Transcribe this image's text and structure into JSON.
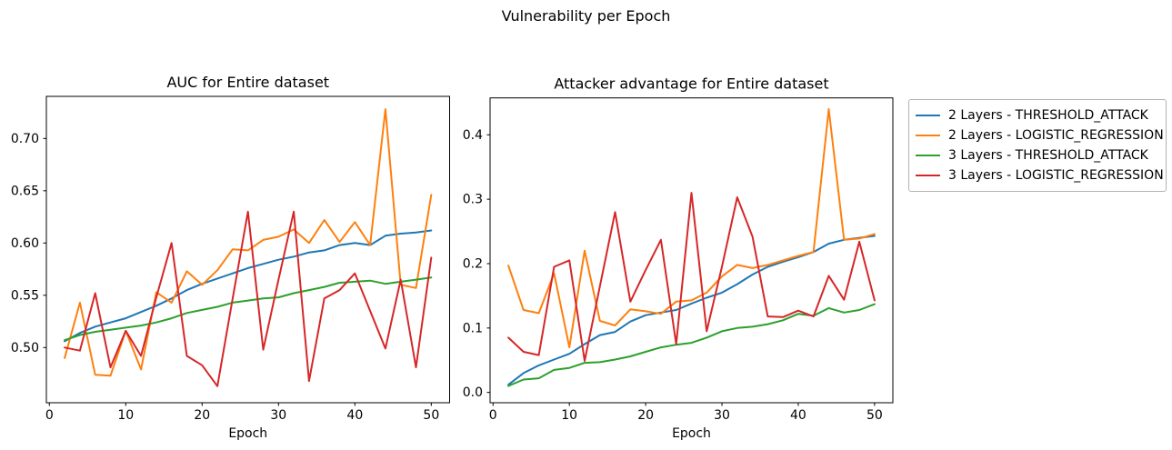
{
  "figure": {
    "suptitle": "Vulnerability per Epoch"
  },
  "legend": {
    "items": [
      {
        "label": "2 Layers - THRESHOLD_ATTACK",
        "color": "#1f77b4"
      },
      {
        "label": "2 Layers - LOGISTIC_REGRESSION",
        "color": "#ff7f0e"
      },
      {
        "label": "3 Layers - THRESHOLD_ATTACK",
        "color": "#2ca02c"
      },
      {
        "label": "3 Layers - LOGISTIC_REGRESSION",
        "color": "#d62728"
      }
    ]
  },
  "chart_data": [
    {
      "type": "line",
      "title": "AUC for Entire dataset",
      "xlabel": "Epoch",
      "legend_position": "outside-right-of-second-plot",
      "grid": false,
      "xlim": [
        -0.39,
        52.4
      ],
      "ylim": [
        0.4472,
        0.7403
      ],
      "xticks": [
        {
          "v": 0,
          "label": "0"
        },
        {
          "v": 10,
          "label": "10"
        },
        {
          "v": 20,
          "label": "20"
        },
        {
          "v": 30,
          "label": "30"
        },
        {
          "v": 40,
          "label": "40"
        },
        {
          "v": 50,
          "label": "50"
        }
      ],
      "yticks": [
        {
          "v": 0.5,
          "label": "0.50"
        },
        {
          "v": 0.55,
          "label": "0.55"
        },
        {
          "v": 0.6,
          "label": "0.60"
        },
        {
          "v": 0.65,
          "label": "0.65"
        },
        {
          "v": 0.7,
          "label": "0.70"
        }
      ],
      "x": [
        2,
        4,
        6,
        8,
        10,
        12,
        14,
        16,
        18,
        20,
        22,
        24,
        26,
        28,
        30,
        32,
        34,
        36,
        38,
        40,
        42,
        44,
        46,
        48,
        50
      ],
      "series": [
        {
          "name": "2 Layers - THRESHOLD_ATTACK",
          "color": "#1f77b4",
          "values": [
            0.506,
            0.514,
            0.52,
            0.524,
            0.528,
            0.534,
            0.54,
            0.547,
            0.555,
            0.561,
            0.566,
            0.571,
            0.576,
            0.58,
            0.584,
            0.587,
            0.591,
            0.593,
            0.598,
            0.6,
            0.598,
            0.607,
            0.609,
            0.61,
            0.612
          ]
        },
        {
          "name": "2 Layers - LOGISTIC_REGRESSION",
          "color": "#ff7f0e",
          "values": [
            0.49,
            0.543,
            0.474,
            0.473,
            0.516,
            0.479,
            0.553,
            0.543,
            0.573,
            0.56,
            0.574,
            0.594,
            0.593,
            0.603,
            0.606,
            0.613,
            0.6,
            0.622,
            0.601,
            0.62,
            0.598,
            0.728,
            0.56,
            0.557,
            0.646
          ]
        },
        {
          "name": "3 Layers - THRESHOLD_ATTACK",
          "color": "#2ca02c",
          "values": [
            0.507,
            0.512,
            0.515,
            0.517,
            0.519,
            0.521,
            0.524,
            0.528,
            0.533,
            0.536,
            0.539,
            0.543,
            0.545,
            0.547,
            0.548,
            0.552,
            0.555,
            0.558,
            0.562,
            0.563,
            0.564,
            0.561,
            0.563,
            0.565,
            0.567
          ]
        },
        {
          "name": "3 Layers - LOGISTIC_REGRESSION",
          "color": "#d62728",
          "values": [
            0.5,
            0.497,
            0.552,
            0.481,
            0.516,
            0.492,
            0.548,
            0.6,
            0.492,
            0.483,
            0.463,
            0.547,
            0.63,
            0.498,
            0.565,
            0.63,
            0.468,
            0.547,
            0.555,
            0.571,
            0.535,
            0.499,
            0.565,
            0.481,
            0.586
          ]
        }
      ]
    },
    {
      "type": "line",
      "title": "Attacker advantage for Entire dataset",
      "xlabel": "Epoch",
      "grid": false,
      "xlim": [
        -0.39,
        52.4
      ],
      "ylim": [
        -0.016,
        0.4573
      ],
      "xticks": [
        {
          "v": 0,
          "label": "0"
        },
        {
          "v": 10,
          "label": "10"
        },
        {
          "v": 20,
          "label": "20"
        },
        {
          "v": 30,
          "label": "30"
        },
        {
          "v": 40,
          "label": "40"
        },
        {
          "v": 50,
          "label": "50"
        }
      ],
      "yticks": [
        {
          "v": 0.0,
          "label": "0.0"
        },
        {
          "v": 0.1,
          "label": "0.1"
        },
        {
          "v": 0.2,
          "label": "0.2"
        },
        {
          "v": 0.3,
          "label": "0.3"
        },
        {
          "v": 0.4,
          "label": "0.4"
        }
      ],
      "x": [
        2,
        4,
        6,
        8,
        10,
        12,
        14,
        16,
        18,
        20,
        22,
        24,
        26,
        28,
        30,
        32,
        34,
        36,
        38,
        40,
        42,
        44,
        46,
        48,
        50
      ],
      "series": [
        {
          "name": "2 Layers - THRESHOLD_ATTACK",
          "color": "#1f77b4",
          "values": [
            0.012,
            0.03,
            0.042,
            0.051,
            0.06,
            0.075,
            0.089,
            0.094,
            0.11,
            0.12,
            0.124,
            0.128,
            0.138,
            0.147,
            0.155,
            0.168,
            0.183,
            0.195,
            0.203,
            0.21,
            0.218,
            0.231,
            0.237,
            0.24,
            0.243
          ]
        },
        {
          "name": "2 Layers - LOGISTIC_REGRESSION",
          "color": "#ff7f0e",
          "values": [
            0.197,
            0.128,
            0.123,
            0.185,
            0.07,
            0.22,
            0.111,
            0.104,
            0.129,
            0.126,
            0.122,
            0.141,
            0.143,
            0.155,
            0.18,
            0.198,
            0.193,
            0.198,
            0.205,
            0.212,
            0.218,
            0.44,
            0.237,
            0.239,
            0.246
          ]
        },
        {
          "name": "3 Layers - THRESHOLD_ATTACK",
          "color": "#2ca02c",
          "values": [
            0.01,
            0.02,
            0.022,
            0.035,
            0.038,
            0.046,
            0.047,
            0.051,
            0.056,
            0.063,
            0.07,
            0.074,
            0.077,
            0.085,
            0.095,
            0.1,
            0.102,
            0.106,
            0.112,
            0.122,
            0.119,
            0.131,
            0.124,
            0.128,
            0.137
          ]
        },
        {
          "name": "3 Layers - LOGISTIC_REGRESSION",
          "color": "#d62728",
          "values": [
            0.085,
            0.063,
            0.058,
            0.195,
            0.205,
            0.049,
            0.165,
            0.28,
            0.141,
            0.19,
            0.237,
            0.075,
            0.31,
            0.095,
            0.195,
            0.303,
            0.242,
            0.118,
            0.117,
            0.127,
            0.118,
            0.181,
            0.144,
            0.234,
            0.143
          ]
        }
      ]
    }
  ]
}
